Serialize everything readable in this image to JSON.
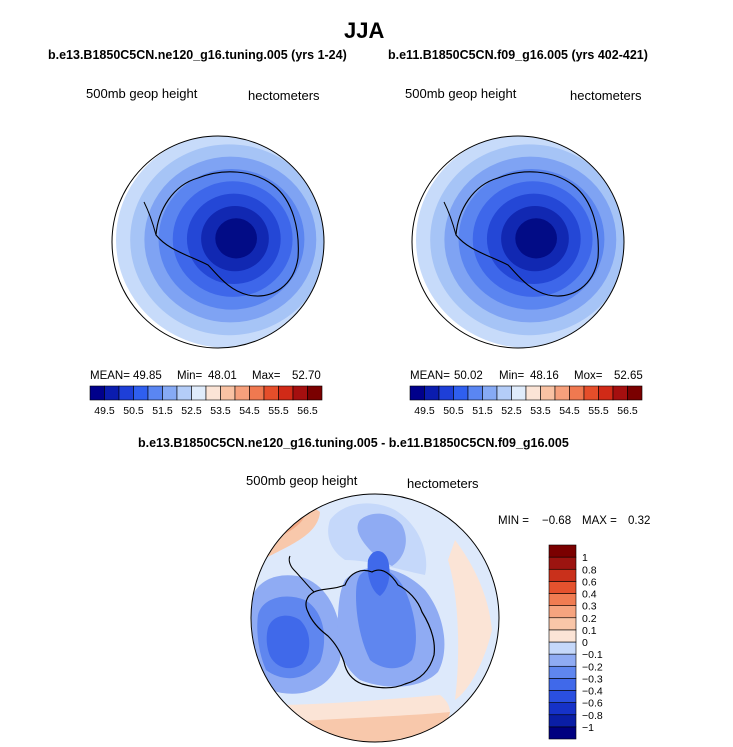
{
  "figure": {
    "title": "JJA",
    "panel_left_subtitle": "b.e13.B1850C5CN.ne120_g16.tuning.005 (yrs 1-24)",
    "panel_right_subtitle": "b.e11.B1850C5CN.f09_g16.005 (yrs 402-421)",
    "diff_subtitle": "b.e13.B1850C5CN.ne120_g16.tuning.005 - b.e11.B1850C5CN.f09_g16.005"
  },
  "chart_data": [
    {
      "type": "heatmap",
      "projection": "south-polar-stereographic",
      "variable_label": "500mb geop height",
      "units_label": "hectometers",
      "stats": {
        "mean_label": "MEAN=",
        "mean": "49.85",
        "min_label": "Min=",
        "min": "48.01",
        "max_label": "Max=",
        "max": "52.70"
      },
      "colorbar_levels": [
        "49.5",
        "50.5",
        "51.5",
        "52.5",
        "53.5",
        "54.5",
        "55.5",
        "56.5"
      ],
      "colorbar_colors": [
        "#00008b",
        "#0a1cae",
        "#1e3fd8",
        "#2f5ff0",
        "#5a86f2",
        "#86aaf5",
        "#b4cdf8",
        "#e0ecfb",
        "#fbe4d6",
        "#f9c2a3",
        "#f6a07c",
        "#f07950",
        "#e64e2a",
        "#d12a17",
        "#a50f0f",
        "#7a0000"
      ],
      "field_levels_by_ring": [
        "#c7dbfa",
        "#a6c4f6",
        "#7fa3f3",
        "#5b85f0",
        "#3e67ea",
        "#2447d6",
        "#1128b2",
        "#020c86"
      ]
    },
    {
      "type": "heatmap",
      "projection": "south-polar-stereographic",
      "variable_label": "500mb geop height",
      "units_label": "hectometers",
      "stats": {
        "mean_label": "MEAN=",
        "mean": "50.02",
        "min_label": "Min=",
        "min": "48.16",
        "max_label": "Mox=",
        "max": "52.65"
      },
      "colorbar_levels": [
        "49.5",
        "50.5",
        "51.5",
        "52.5",
        "53.5",
        "54.5",
        "55.5",
        "56.5"
      ],
      "colorbar_colors": [
        "#00008b",
        "#0a1cae",
        "#1e3fd8",
        "#2f5ff0",
        "#5a86f2",
        "#86aaf5",
        "#b4cdf8",
        "#e0ecfb",
        "#fbe4d6",
        "#f9c2a3",
        "#f6a07c",
        "#f07950",
        "#e64e2a",
        "#d12a17",
        "#a50f0f",
        "#7a0000"
      ],
      "field_levels_by_ring": [
        "#c7dbfa",
        "#a6c4f6",
        "#7fa3f3",
        "#5b85f0",
        "#3e67ea",
        "#2447d6",
        "#1128b2",
        "#020c86"
      ]
    },
    {
      "type": "heatmap",
      "projection": "south-polar-stereographic",
      "variable_label": "500mb geop height",
      "units_label": "hectometers",
      "stats": {
        "min_label": "MIN =",
        "min": "−0.68",
        "max_label": "MAX =",
        "max": "0.32"
      },
      "colorbar_levels": [
        "−1",
        "−0.8",
        "−0.6",
        "−0.4",
        "−0.3",
        "−0.2",
        "−0.1",
        "0",
        "0.1",
        "0.2",
        "0.3",
        "0.4",
        "0.6",
        "0.8",
        "1"
      ],
      "colorbar_colors": [
        "#000080",
        "#0a1ea6",
        "#1632c8",
        "#2a4fe0",
        "#4069ea",
        "#5f86ef",
        "#8fabf3",
        "#c5d8fa",
        "#fbe4d6",
        "#f9c6a8",
        "#f6a47f",
        "#f07c52",
        "#e5522e",
        "#c9301b",
        "#9c1410",
        "#7a0000"
      ],
      "colorbar_orientation": "vertical",
      "colorbar_placement": "right"
    }
  ]
}
